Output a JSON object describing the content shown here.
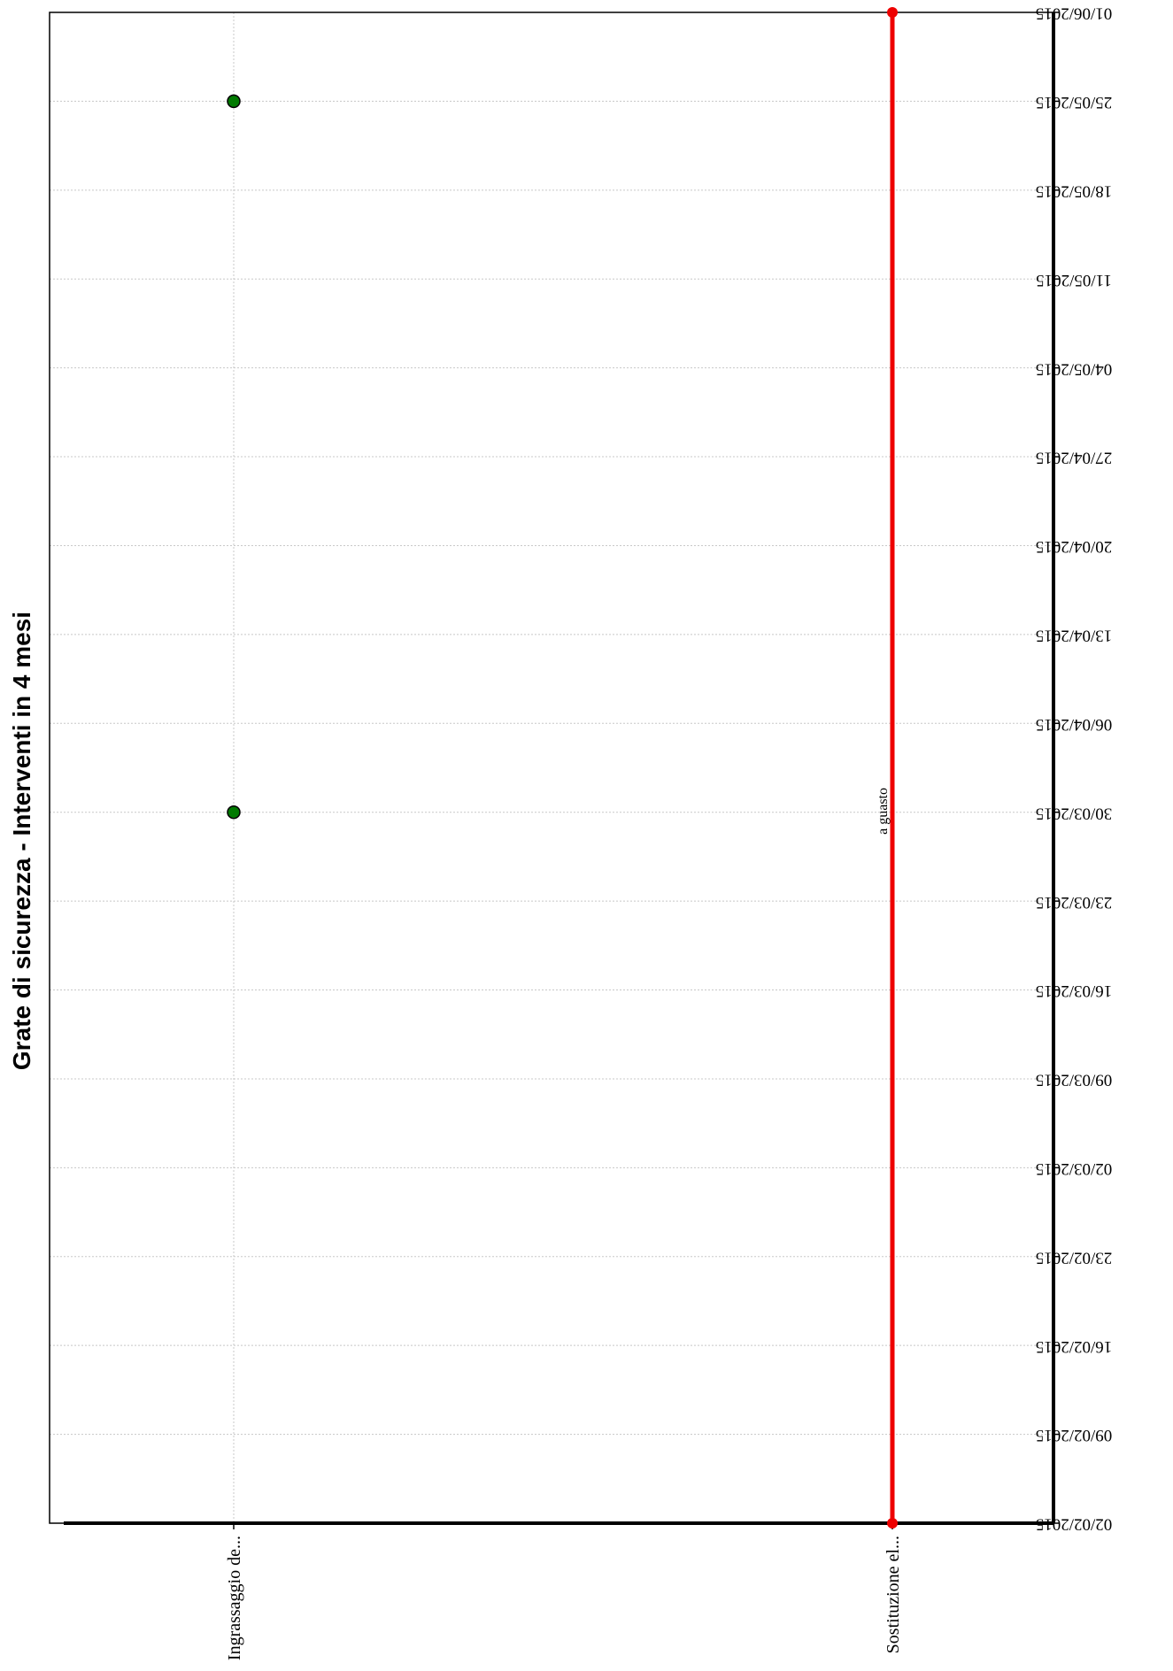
{
  "chart_data": {
    "type": "timeline",
    "title": "Grate di sicurezza - Interventi in 4 mesi",
    "categories": [
      "Ingrassaggio de...",
      "Sostituzione el..."
    ],
    "date_axis": {
      "ticks": [
        "02/02/2015",
        "09/02/2015",
        "16/02/2015",
        "23/02/2015",
        "02/03/2015",
        "09/03/2015",
        "16/03/2015",
        "23/03/2015",
        "30/03/2015",
        "06/04/2015",
        "13/04/2015",
        "20/04/2015",
        "27/04/2015",
        "04/05/2015",
        "11/05/2015",
        "18/05/2015",
        "25/05/2015",
        "01/06/2015"
      ],
      "range": [
        "02/02/2015",
        "01/06/2015"
      ]
    },
    "grid": true,
    "orientation": "rotated 90 degrees, read sideways",
    "series": [
      {
        "category": "Ingrassaggio de...",
        "kind": "points",
        "color": "#007a00",
        "points": [
          "30/03/2015",
          "25/05/2015"
        ]
      },
      {
        "category": "Sostituzione el...",
        "kind": "range",
        "color": "#ee0000",
        "start": "02/02/2015",
        "end": "01/06/2015",
        "label": "a guasto"
      }
    ]
  },
  "colors": {
    "background": "#ffffff",
    "axis": "#000000",
    "grid": "#c8c8c8",
    "point_fill": "#007a00",
    "range_line": "#ee0000"
  }
}
